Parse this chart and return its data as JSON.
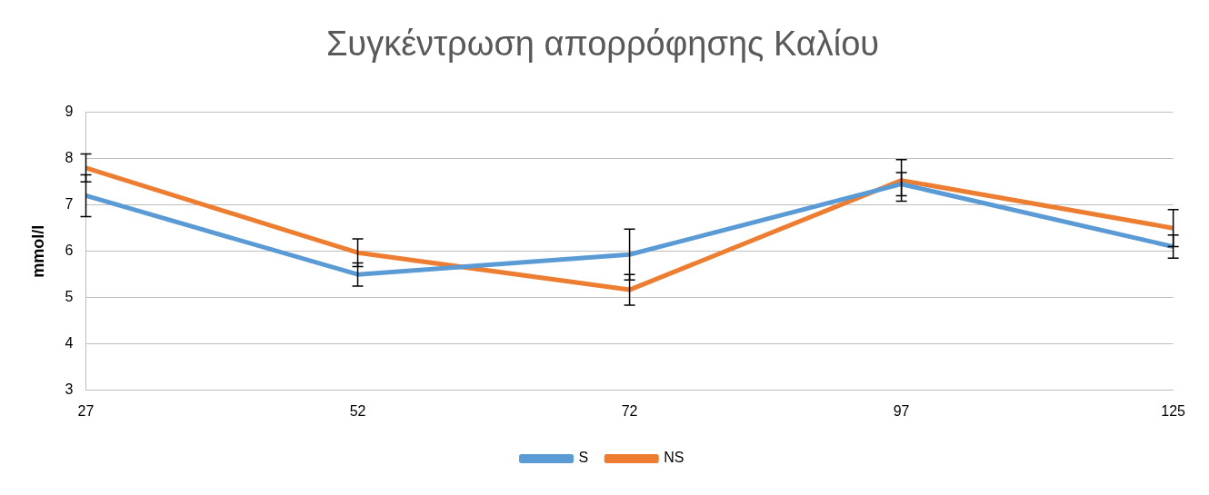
{
  "chart_data": {
    "type": "line",
    "title": "Συγκέντρωση απορρόφησης Καλίου",
    "ylabel": "mmol/l",
    "categories": [
      "27",
      "52",
      "72",
      "97",
      "125"
    ],
    "series": [
      {
        "name": "S",
        "color": "#5b9bd5",
        "values": [
          7.2,
          5.5,
          5.93,
          7.45,
          6.1
        ],
        "errors": [
          0.45,
          0.25,
          0.55,
          0.25,
          0.25
        ]
      },
      {
        "name": "NS",
        "color": "#ed7d31",
        "values": [
          7.8,
          5.97,
          5.17,
          7.53,
          6.5
        ],
        "errors": [
          0.3,
          0.3,
          0.33,
          0.45,
          0.4
        ]
      }
    ],
    "ylim": [
      3,
      9
    ],
    "yticks": [
      3,
      4,
      5,
      6,
      7,
      8,
      9
    ],
    "grid": "y",
    "legend": "bottom",
    "marker": "none",
    "line_style": "solid"
  }
}
